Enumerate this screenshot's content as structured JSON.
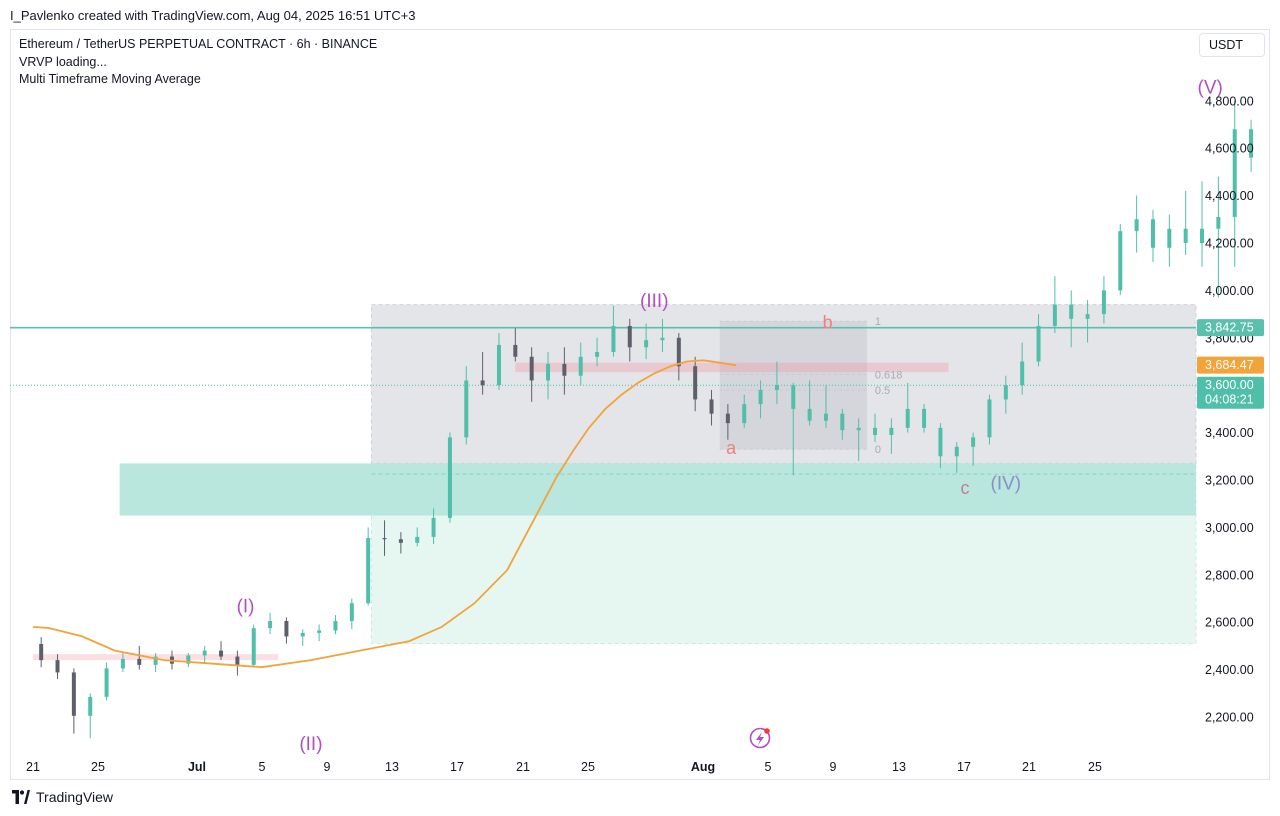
{
  "header": {
    "created_by": "I_Pavlenko created with TradingView.com, Aug 04, 2025 16:51 UTC+3"
  },
  "legend": {
    "symbol": "Ethereum / TetherUS PERPETUAL CONTRACT · 6h · BINANCE",
    "indicator_1": "VRVP loading...",
    "indicator_2": "Multi Timeframe Moving Average"
  },
  "currency": "USDT",
  "footer": {
    "brand": "TradingView"
  },
  "colors": {
    "bull": "#4fbfa9",
    "bear": "#5d606b",
    "ma": "#f2a33a",
    "wave": "#b04fbf",
    "abc": "#f08080",
    "zone_green": "#b9e6dd",
    "zone_light": "#e6f7f2",
    "zone_grey": "#e4e5e9",
    "level_line": "#5bbfae"
  },
  "chart_data": {
    "type": "candlestick",
    "symbol": "ETHUSDT.P",
    "timeframe": "6h",
    "exchange": "BINANCE",
    "y_axis": {
      "ticks": [
        2200,
        2400,
        2600,
        2800,
        3000,
        3200,
        3400,
        3600,
        3800,
        4000,
        4200,
        4400,
        4600,
        4800
      ],
      "tick_labels": [
        "2,200.00",
        "2,400.00",
        "2,600.00",
        "2,800.00",
        "3,000.00",
        "3,200.00",
        "3,400.00",
        "3,600.00",
        "3,800.00",
        "4,000.00",
        "4,200.00",
        "4,400.00",
        "4,600.00",
        "4,800.00"
      ]
    },
    "x_axis": {
      "ticks": [
        "21",
        "25",
        "Jul",
        "5",
        "9",
        "13",
        "17",
        "21",
        "25",
        "Aug",
        "5",
        "9",
        "13",
        "17",
        "21",
        "25"
      ],
      "bold": [
        "Jul",
        "Aug"
      ]
    },
    "price_labels": [
      {
        "label": "3,842.75",
        "value": 3842.75,
        "color": "#5bbfae"
      },
      {
        "label": "3,684.47",
        "value": 3684.47,
        "color": "#f2a33a"
      },
      {
        "label": "3,600.00",
        "sub": "04:08:21",
        "value": 3600,
        "color": "#4fbfa9"
      }
    ],
    "wave_labels": [
      {
        "text": "(I)",
        "day": 13,
        "price": 2640
      },
      {
        "text": "(II)",
        "day": 17,
        "price": 2060
      },
      {
        "text": "(III)",
        "day": 38,
        "price": 3930
      },
      {
        "text": "(IV)",
        "day": 59.5,
        "price": 3160
      },
      {
        "text": "(V)",
        "day": 72,
        "price": 4830
      }
    ],
    "abc_labels": [
      {
        "text": "a",
        "day": 42.7,
        "price": 3310
      },
      {
        "text": "b",
        "day": 48.6,
        "price": 3840
      },
      {
        "text": "c",
        "day": 57,
        "price": 3140
      }
    ],
    "fib_levels": [
      {
        "label": "1",
        "value": 3870
      },
      {
        "label": "0.618",
        "value": 3645
      },
      {
        "label": "0.5",
        "value": 3580
      },
      {
        "label": "0",
        "value": 3330
      }
    ],
    "ohlc_daily": [
      [
        2508,
        2537,
        2410,
        2440
      ],
      [
        2440,
        2465,
        2360,
        2388
      ],
      [
        2388,
        2405,
        2130,
        2205
      ],
      [
        2205,
        2300,
        2110,
        2285
      ],
      [
        2285,
        2430,
        2270,
        2405
      ],
      [
        2405,
        2470,
        2390,
        2445
      ],
      [
        2445,
        2500,
        2400,
        2420
      ],
      [
        2420,
        2470,
        2390,
        2455
      ],
      [
        2455,
        2480,
        2400,
        2425
      ],
      [
        2425,
        2470,
        2410,
        2460
      ],
      [
        2460,
        2500,
        2430,
        2480
      ],
      [
        2480,
        2520,
        2440,
        2455
      ],
      [
        2455,
        2480,
        2375,
        2420
      ],
      [
        2420,
        2590,
        2410,
        2575
      ],
      [
        2575,
        2640,
        2550,
        2605
      ],
      [
        2605,
        2620,
        2510,
        2540
      ],
      [
        2540,
        2570,
        2500,
        2555
      ],
      [
        2555,
        2590,
        2520,
        2565
      ],
      [
        2565,
        2630,
        2550,
        2605
      ],
      [
        2605,
        2700,
        2570,
        2680
      ],
      [
        2680,
        3000,
        2670,
        2955
      ],
      [
        2955,
        3030,
        2880,
        2950
      ],
      [
        2950,
        2980,
        2890,
        2935
      ],
      [
        2935,
        3000,
        2920,
        2960
      ],
      [
        2960,
        3080,
        2930,
        3040
      ],
      [
        3040,
        3400,
        3020,
        3380
      ],
      [
        3380,
        3680,
        3350,
        3620
      ],
      [
        3620,
        3740,
        3560,
        3600
      ],
      [
        3600,
        3820,
        3580,
        3770
      ],
      [
        3770,
        3840,
        3700,
        3720
      ],
      [
        3720,
        3760,
        3530,
        3620
      ],
      [
        3620,
        3740,
        3540,
        3690
      ],
      [
        3690,
        3760,
        3560,
        3640
      ],
      [
        3640,
        3780,
        3600,
        3720
      ],
      [
        3720,
        3800,
        3680,
        3740
      ],
      [
        3740,
        3935,
        3720,
        3850
      ],
      [
        3850,
        3880,
        3700,
        3760
      ],
      [
        3760,
        3860,
        3710,
        3790
      ],
      [
        3790,
        3880,
        3740,
        3800
      ],
      [
        3800,
        3820,
        3620,
        3680
      ],
      [
        3680,
        3720,
        3490,
        3540
      ],
      [
        3540,
        3580,
        3430,
        3480
      ],
      [
        3480,
        3520,
        3370,
        3440
      ],
      [
        3440,
        3560,
        3420,
        3520
      ],
      [
        3520,
        3620,
        3460,
        3580
      ],
      [
        3580,
        3700,
        3520,
        3600
      ],
      [
        3600,
        3610,
        3220,
        3500
      ],
      [
        3500,
        3620,
        3430,
        3450
      ],
      [
        3450,
        3600,
        3420,
        3480
      ],
      [
        3480,
        3500,
        3370,
        3410
      ],
      [
        3410,
        3460,
        3280,
        3420
      ],
      [
        3420,
        3480,
        3360,
        3390
      ],
      [
        3390,
        3460,
        3310,
        3420
      ],
      [
        3420,
        3610,
        3400,
        3500
      ],
      [
        3500,
        3520,
        3400,
        3420
      ],
      [
        3420,
        3440,
        3250,
        3300
      ],
      [
        3300,
        3360,
        3230,
        3340
      ],
      [
        3340,
        3400,
        3260,
        3380
      ],
      [
        3380,
        3560,
        3350,
        3540
      ],
      [
        3540,
        3640,
        3480,
        3600
      ],
      [
        3600,
        3780,
        3560,
        3700
      ],
      [
        3700,
        3900,
        3680,
        3850
      ],
      [
        3850,
        4060,
        3820,
        3940
      ],
      [
        3940,
        4000,
        3760,
        3880
      ],
      [
        3880,
        3960,
        3780,
        3900
      ],
      [
        3900,
        4060,
        3860,
        4000
      ],
      [
        4000,
        4280,
        3980,
        4250
      ],
      [
        4250,
        4400,
        4160,
        4300
      ],
      [
        4300,
        4340,
        4120,
        4180
      ],
      [
        4180,
        4320,
        4100,
        4260
      ],
      [
        4260,
        4420,
        4150,
        4200
      ],
      [
        4200,
        4460,
        4100,
        4260
      ],
      [
        4260,
        4480,
        3970,
        4310
      ],
      [
        4310,
        4800,
        4100,
        4680
      ],
      [
        4680,
        4720,
        4500,
        4560
      ]
    ],
    "ma": [
      [
        0,
        2580
      ],
      [
        1,
        2575
      ],
      [
        3,
        2540
      ],
      [
        5,
        2480
      ],
      [
        8,
        2440
      ],
      [
        11,
        2425
      ],
      [
        14,
        2410
      ],
      [
        17,
        2440
      ],
      [
        20,
        2480
      ],
      [
        23,
        2520
      ],
      [
        25,
        2580
      ],
      [
        27,
        2680
      ],
      [
        29,
        2820
      ],
      [
        30,
        2950
      ],
      [
        31,
        3080
      ],
      [
        32,
        3210
      ],
      [
        33,
        3320
      ],
      [
        34,
        3420
      ],
      [
        35,
        3500
      ],
      [
        36,
        3560
      ],
      [
        37,
        3610
      ],
      [
        38,
        3650
      ],
      [
        39,
        3680
      ],
      [
        40,
        3700
      ],
      [
        41,
        3705
      ],
      [
        42,
        3695
      ],
      [
        43,
        3684
      ]
    ],
    "zones": [
      {
        "name": "demand",
        "from_day": 5.3,
        "to_day": 74.5,
        "low": 3050,
        "high": 3270
      },
      {
        "name": "target-box",
        "from_day": 20.7,
        "to_day": 74.5,
        "low": 2510,
        "high": 3270
      },
      {
        "name": "range-box",
        "from_day": 20.7,
        "to_day": 74.5,
        "low": 3270,
        "high": 3940
      },
      {
        "name": "fib-box",
        "from_day": 42,
        "to_day": 51,
        "low": 3330,
        "high": 3870
      },
      {
        "name": "resistance-strip",
        "from_day": 29.5,
        "to_day": 56,
        "low": 3655,
        "high": 3695
      },
      {
        "name": "support-strip-left",
        "from_day": 0,
        "to_day": 15,
        "low": 2440,
        "high": 2465
      },
      {
        "name": "dashed-level",
        "from_day": 20.7,
        "to_day": 74.5,
        "value": 3225
      }
    ]
  }
}
